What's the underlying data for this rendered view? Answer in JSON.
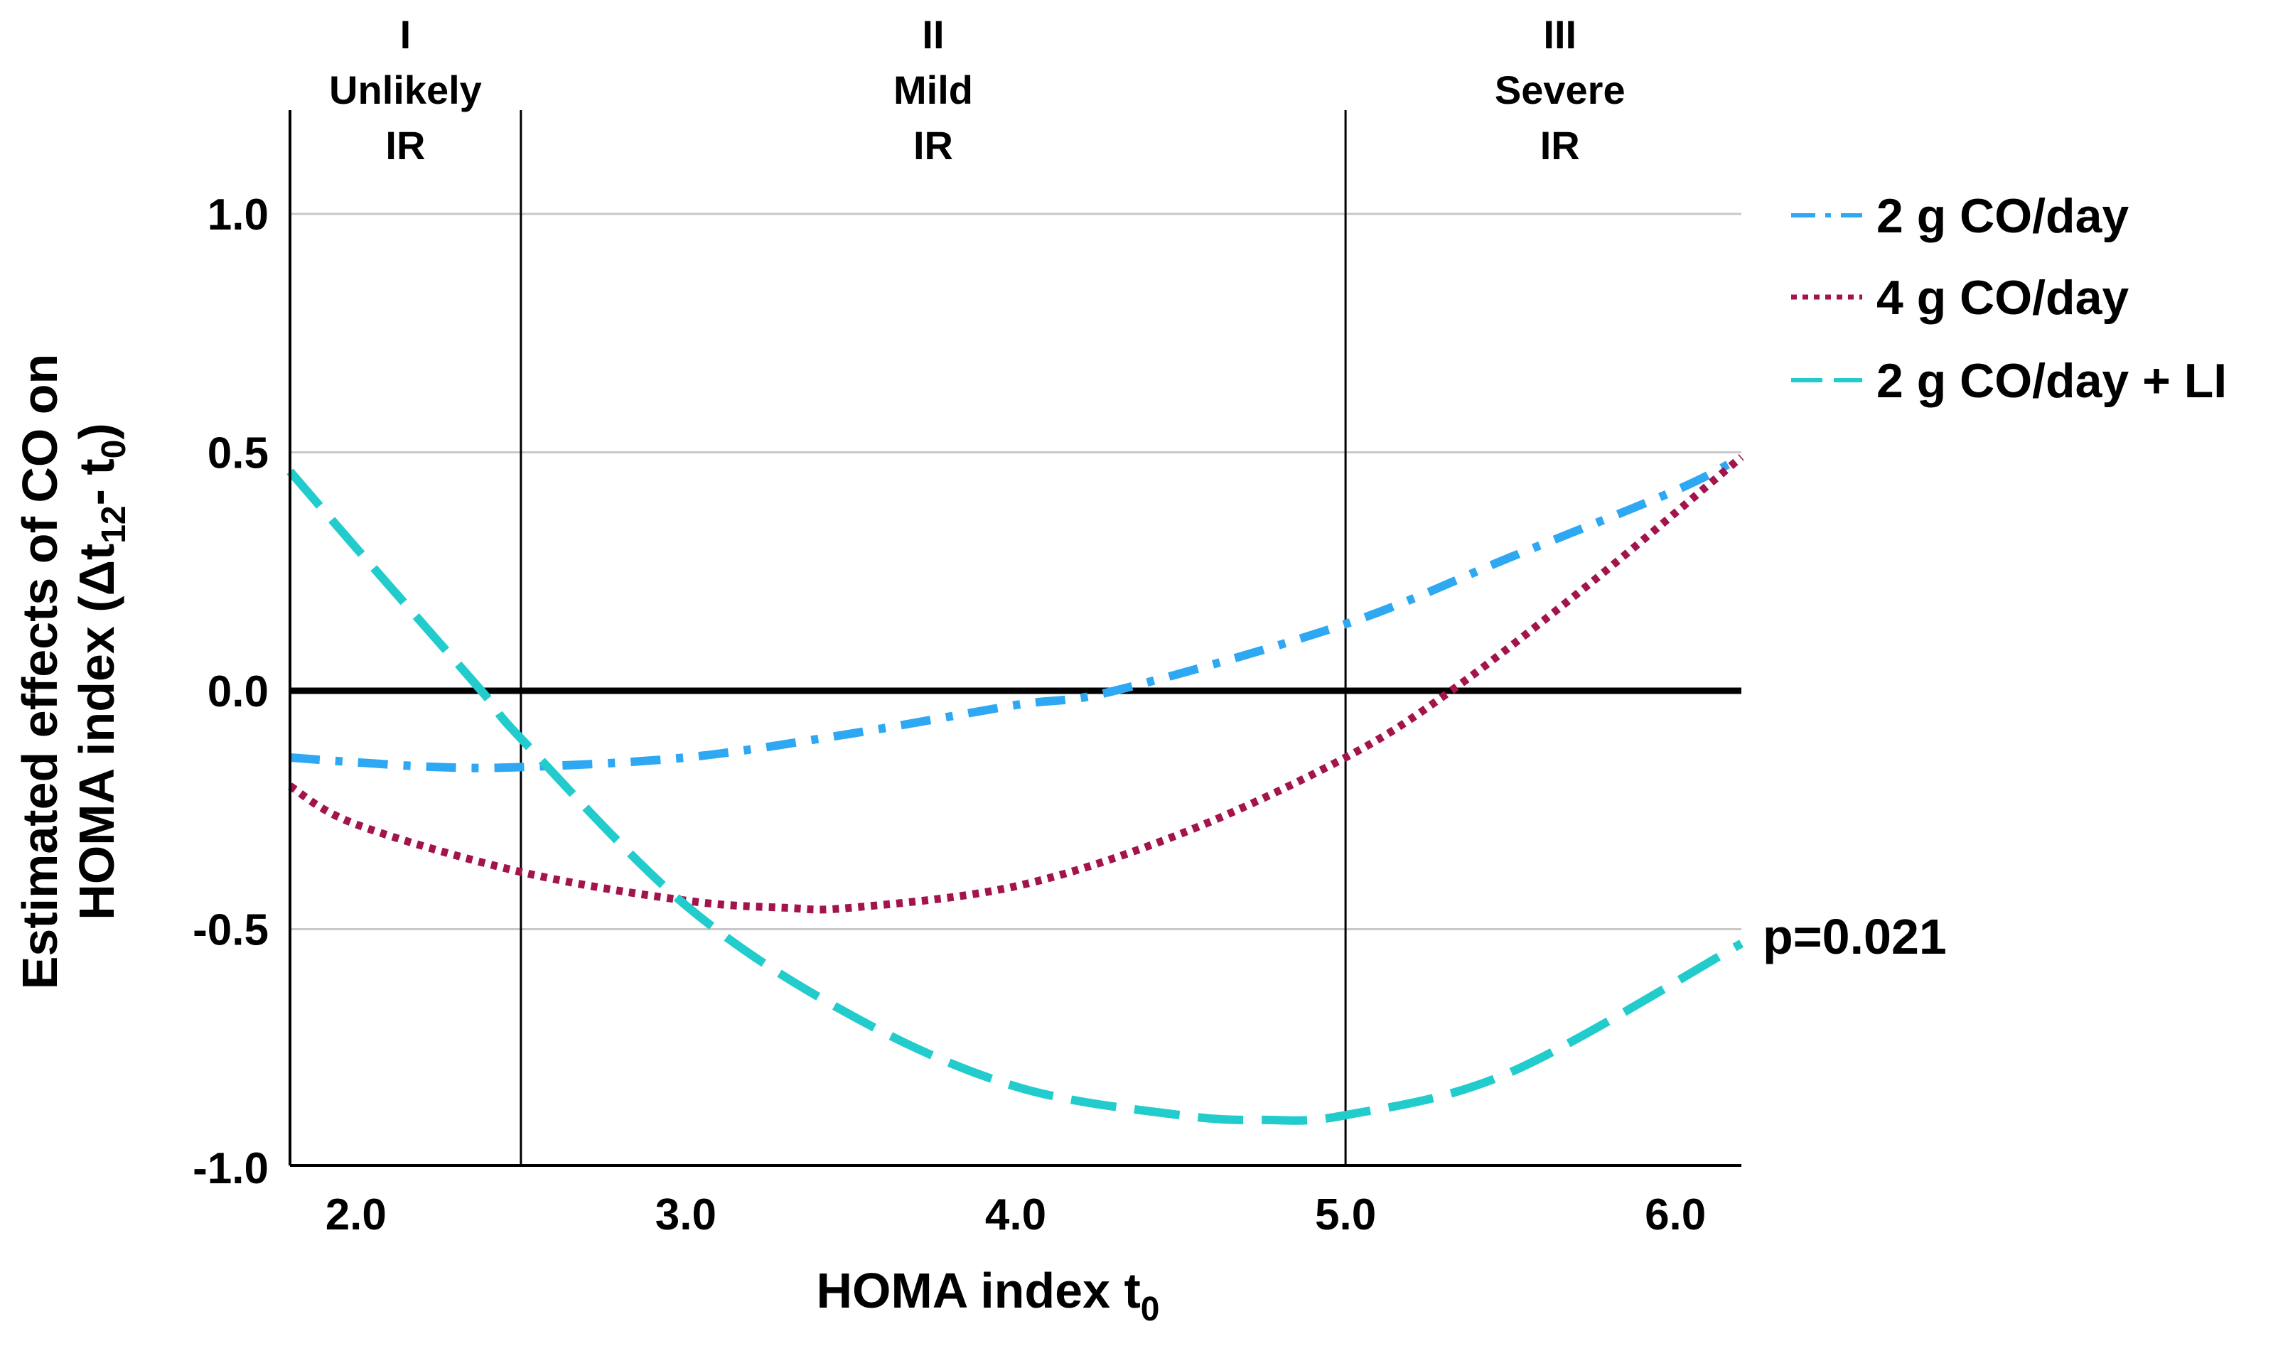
{
  "chart_data": {
    "type": "line",
    "title": "",
    "xlabel": "HOMA index t",
    "xlabel_sub": "0",
    "ylabel_parts": [
      "Estimated effects of CO on",
      "HOMA index (Δt",
      "12",
      "- t",
      "0",
      ")"
    ],
    "xlim": [
      1.8,
      6.2
    ],
    "ylim": [
      -1.0,
      1.25
    ],
    "x_ticks": [
      2.0,
      3.0,
      4.0,
      5.0,
      6.0
    ],
    "x_tick_labels": [
      "2.0",
      "3.0",
      "4.0",
      "5.0",
      "6.0"
    ],
    "y_ticks": [
      1.0,
      0.5,
      0.0,
      -0.5,
      -1.0
    ],
    "y_tick_labels": [
      "1.0",
      "0.5",
      "0.0",
      "-0.5",
      "-1.0"
    ],
    "horizontal_gridlines": [
      1.0,
      0.5,
      -0.5
    ],
    "reference_line_y": 0.0,
    "zone_boundaries": [
      2.5,
      5.0
    ],
    "zones": [
      {
        "numeral": "I",
        "label1": "Unlikely",
        "label2": "IR",
        "x_center": 2.15
      },
      {
        "numeral": "II",
        "label1": "Mild",
        "label2": "IR",
        "x_center": 3.75
      },
      {
        "numeral": "III",
        "label1": "Severe",
        "label2": "IR",
        "x_center": 5.65
      }
    ],
    "series": [
      {
        "name": "2 g CO/day",
        "color": "#2ea8f2",
        "dash": "dashdot",
        "x": [
          1.8,
          2.0,
          2.25,
          2.5,
          3.0,
          3.5,
          4.0,
          4.3,
          5.0,
          5.5,
          6.0,
          6.2
        ],
        "y": [
          -0.14,
          -0.15,
          -0.16,
          -0.16,
          -0.14,
          -0.09,
          -0.03,
          0.0,
          0.14,
          0.28,
          0.42,
          0.49
        ]
      },
      {
        "name": "4 g CO/day",
        "color": "#a3134c",
        "dash": "dotted",
        "x": [
          1.8,
          2.0,
          2.5,
          3.0,
          3.3,
          3.5,
          4.0,
          4.5,
          5.0,
          5.32,
          5.75,
          6.2
        ],
        "y": [
          -0.2,
          -0.28,
          -0.38,
          -0.44,
          -0.455,
          -0.455,
          -0.41,
          -0.3,
          -0.14,
          0.0,
          0.23,
          0.49
        ]
      },
      {
        "name": "2 g CO/day + LI",
        "color": "#23cccc",
        "dash": "dashed",
        "x": [
          1.8,
          2.0,
          2.38,
          2.5,
          3.0,
          3.5,
          4.0,
          4.5,
          4.75,
          5.0,
          5.5,
          6.2
        ],
        "y": [
          0.46,
          0.3,
          0.0,
          -0.1,
          -0.45,
          -0.68,
          -0.83,
          -0.89,
          -0.9,
          -0.89,
          -0.8,
          -0.53
        ]
      }
    ],
    "legend": [
      "2 g CO/day",
      "4 g CO/day",
      "2 g CO/day + LI"
    ],
    "legend_position": "right",
    "annotation": "p=0.021"
  }
}
